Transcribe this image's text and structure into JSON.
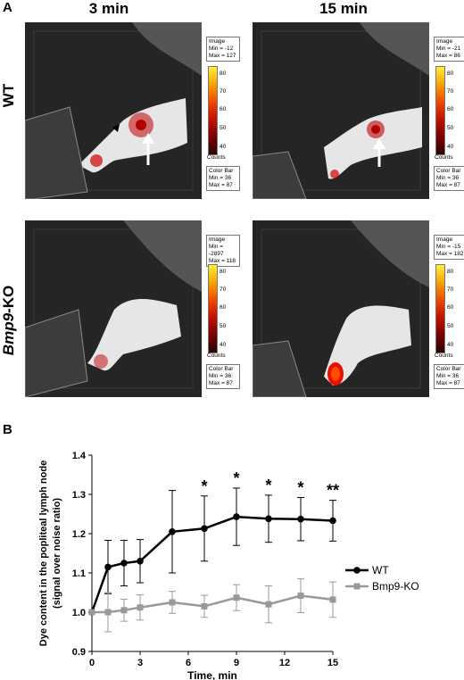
{
  "panel_a_label": "A",
  "panel_b_label": "B",
  "col_titles": [
    "3 min",
    "15 min"
  ],
  "row_labels": {
    "wt": "WT",
    "ko_italic": "Bmp9",
    "ko_rest": "-KO"
  },
  "images": [
    {
      "image_head": "Image",
      "min_label": "Min = -12",
      "max_label": "Max = 127",
      "colorbar_head": "Color Bar",
      "cb_min": "Min = 36",
      "cb_max": "Max = 87",
      "counts": "Counts",
      "ticks": [
        "80",
        "70",
        "60",
        "50",
        "40"
      ]
    },
    {
      "image_head": "Image",
      "min_label": "Min = -21",
      "max_label": "Max = 86",
      "colorbar_head": "Color Bar",
      "cb_min": "Min = 36",
      "cb_max": "Max = 87",
      "counts": "Counts",
      "ticks": [
        "80",
        "70",
        "60",
        "50",
        "40"
      ]
    },
    {
      "image_head": "Image",
      "min_label": "Min = -2897",
      "max_label": "Max = 118",
      "colorbar_head": "Color Bar",
      "cb_min": "Min = 36",
      "cb_max": "Max = 87",
      "counts": "Counts",
      "ticks": [
        "80",
        "70",
        "60",
        "50",
        "40"
      ]
    },
    {
      "image_head": "Image",
      "min_label": "Min = -15",
      "max_label": "Max = 182",
      "colorbar_head": "Color Bar",
      "cb_min": "Min = 36",
      "cb_max": "Max = 87",
      "counts": "Counts",
      "ticks": [
        "80",
        "70",
        "60",
        "50",
        "40"
      ]
    }
  ],
  "chart_data": {
    "type": "line",
    "title": "",
    "xlabel": "Time, min",
    "ylabel_line1": "Dye content in the popliteal lymph node",
    "ylabel_line2": "(signal over noise ratio)",
    "xlim": [
      0,
      15
    ],
    "ylim": [
      0.9,
      1.4
    ],
    "xticks": [
      0,
      3,
      6,
      9,
      12,
      15
    ],
    "yticks": [
      0.9,
      1.0,
      1.1,
      1.2,
      1.3,
      1.4
    ],
    "grid": false,
    "legend_position": "right",
    "series": [
      {
        "name": "WT",
        "color": "#000000",
        "x": [
          0,
          1,
          2,
          3,
          5,
          7,
          9,
          11,
          13,
          15
        ],
        "y": [
          1.0,
          1.115,
          1.125,
          1.13,
          1.205,
          1.213,
          1.243,
          1.238,
          1.237,
          1.233
        ],
        "err": [
          0,
          0.068,
          0.058,
          0.055,
          0.105,
          0.083,
          0.073,
          0.06,
          0.055,
          0.052
        ]
      },
      {
        "name": "Bmp9-KO",
        "color": "#999999",
        "x": [
          0,
          1,
          2,
          3,
          5,
          7,
          9,
          11,
          13,
          15
        ],
        "y": [
          1.0,
          1.0,
          1.005,
          1.012,
          1.025,
          1.015,
          1.037,
          1.02,
          1.042,
          1.032
        ],
        "err": [
          0,
          0.05,
          0.028,
          0.032,
          0.028,
          0.028,
          0.033,
          0.047,
          0.043,
          0.045
        ]
      }
    ],
    "annotations": [
      {
        "x": 7,
        "text": "*"
      },
      {
        "x": 9,
        "text": "*"
      },
      {
        "x": 11,
        "text": "*"
      },
      {
        "x": 13,
        "text": "*"
      },
      {
        "x": 15,
        "text": "**"
      }
    ]
  }
}
